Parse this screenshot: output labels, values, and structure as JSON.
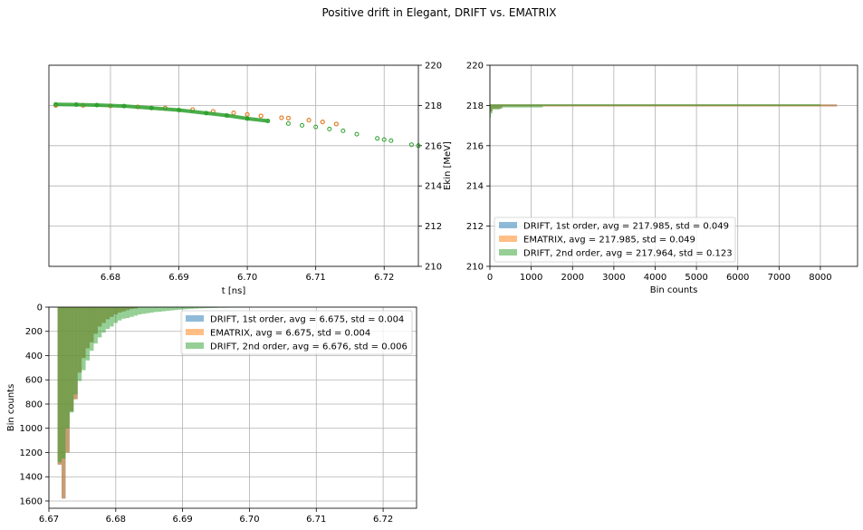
{
  "figure_title": "Positive drift in Elegant, DRIFT vs. EMATRIX",
  "colors": {
    "drift1": "#1f77b4",
    "ematrix": "#ff7f0e",
    "drift2": "#2ca02c"
  },
  "chart_data": [
    {
      "type": "scatter",
      "title": "",
      "xlabel": "t [ns]",
      "ylabel": "Ekin [MeV]",
      "ylabel_side": "right",
      "xlim": [
        6.671,
        6.725
      ],
      "ylim": [
        210,
        220
      ],
      "xticks": [
        "6.67",
        "6.68",
        "6.69",
        "6.70",
        "6.71",
        "6.72"
      ],
      "xtick_values": [
        6.67,
        6.68,
        6.69,
        6.7,
        6.71,
        6.72
      ],
      "yticks": [
        "210",
        "212",
        "214",
        "216",
        "218",
        "220"
      ],
      "ytick_values": [
        210,
        212,
        214,
        216,
        218,
        220
      ],
      "grid": true,
      "series": [
        {
          "name": "DRIFT, 1st order",
          "marker": "open-circle",
          "x": [
            6.672,
            6.676,
            6.68,
            6.684,
            6.688,
            6.692,
            6.695,
            6.698,
            6.7,
            6.702,
            6.705,
            6.706,
            6.709,
            6.711,
            6.713
          ],
          "y": [
            218.0,
            218.0,
            217.98,
            217.93,
            217.87,
            217.79,
            217.7,
            217.63,
            217.55,
            217.48,
            217.39,
            217.37,
            217.27,
            217.18,
            217.08
          ]
        },
        {
          "name": "EMATRIX",
          "marker": "open-circle",
          "x": [
            6.672,
            6.676,
            6.68,
            6.684,
            6.688,
            6.692,
            6.695,
            6.698,
            6.7,
            6.702,
            6.705,
            6.706,
            6.709,
            6.711,
            6.713
          ],
          "y": [
            218.0,
            218.0,
            217.98,
            217.93,
            217.87,
            217.79,
            217.7,
            217.63,
            217.55,
            217.48,
            217.39,
            217.37,
            217.27,
            217.18,
            217.08
          ]
        },
        {
          "name": "DRIFT, 2nd order",
          "marker": "open-circle",
          "x": [
            6.672,
            6.675,
            6.678,
            6.682,
            6.686,
            6.69,
            6.694,
            6.697,
            6.7,
            6.703,
            6.706,
            6.708,
            6.71,
            6.712,
            6.714,
            6.716,
            6.719,
            6.72,
            6.721,
            6.724,
            6.725
          ],
          "y": [
            218.05,
            218.04,
            218.02,
            217.97,
            217.87,
            217.77,
            217.62,
            217.5,
            217.35,
            217.23,
            217.1,
            217.01,
            216.93,
            216.83,
            216.74,
            216.57,
            216.36,
            216.3,
            216.25,
            216.05,
            216.0
          ]
        }
      ]
    },
    {
      "type": "bar",
      "orientation": "horizontal",
      "title": "",
      "xlabel": "Bin counts",
      "ylabel": "",
      "xlim": [
        0,
        8900
      ],
      "ylim": [
        210,
        220
      ],
      "xticks": [
        "0",
        "1000",
        "2000",
        "3000",
        "4000",
        "5000",
        "6000",
        "7000",
        "8000"
      ],
      "xtick_values": [
        0,
        1000,
        2000,
        3000,
        4000,
        5000,
        6000,
        7000,
        8000
      ],
      "yticks": [
        "210",
        "212",
        "214",
        "216",
        "218",
        "220"
      ],
      "ytick_values": [
        210,
        212,
        214,
        216,
        218,
        220
      ],
      "grid": true,
      "legend_position": "lower-left",
      "legend": [
        "DRIFT, 1st order, avg = 217.985, std = 0.049",
        "EMATRIX, avg = 217.985, std = 0.049",
        "DRIFT, 2nd order, avg = 217.964, std = 0.123"
      ],
      "series": [
        {
          "name": "DRIFT, 1st order",
          "bins": [
            [
              217.95,
              218.05,
              8400
            ],
            [
              217.85,
              217.95,
              300
            ],
            [
              217.7,
              217.85,
              60
            ]
          ]
        },
        {
          "name": "EMATRIX",
          "bins": [
            [
              217.95,
              218.05,
              8400
            ],
            [
              217.85,
              217.95,
              300
            ],
            [
              217.7,
              217.85,
              60
            ]
          ]
        },
        {
          "name": "DRIFT, 2nd order",
          "bins": [
            [
              217.98,
              218.06,
              8000
            ],
            [
              217.9,
              217.98,
              1280
            ],
            [
              217.8,
              217.9,
              250
            ],
            [
              217.6,
              217.8,
              60
            ],
            [
              217.4,
              217.6,
              25
            ]
          ]
        }
      ]
    },
    {
      "type": "bar",
      "orientation": "vertical-inverted",
      "title": "",
      "xlabel": "",
      "ylabel": "Bin counts",
      "xlim": [
        6.67,
        6.725
      ],
      "ylim": [
        1660,
        0
      ],
      "xticks": [
        "6.67",
        "6.68",
        "6.69",
        "6.70",
        "6.71",
        "6.72"
      ],
      "xtick_values": [
        6.67,
        6.68,
        6.69,
        6.7,
        6.71,
        6.72
      ],
      "yticks": [
        "0",
        "200",
        "400",
        "600",
        "800",
        "1000",
        "1200",
        "1400",
        "1600"
      ],
      "ytick_values": [
        0,
        200,
        400,
        600,
        800,
        1000,
        1200,
        1400,
        1600
      ],
      "grid": true,
      "legend_position": "upper-right",
      "legend": [
        "DRIFT, 1st order, avg = 6.675, std = 0.004",
        "EMATRIX, avg = 6.675, std = 0.004",
        "DRIFT, 2nd order, avg = 6.676, std = 0.006"
      ],
      "series": [
        {
          "name": "DRIFT, 1st order",
          "bin_start": 6.6713,
          "bin_width": 0.0006,
          "counts": [
            1300,
            1580,
            1200,
            860,
            760,
            540,
            420,
            340,
            290,
            220,
            160,
            130,
            100,
            80,
            60,
            45,
            35,
            25,
            15,
            10
          ]
        },
        {
          "name": "EMATRIX",
          "bin_start": 6.6713,
          "bin_width": 0.0006,
          "counts": [
            1300,
            1580,
            1200,
            860,
            760,
            540,
            420,
            340,
            290,
            220,
            160,
            130,
            100,
            80,
            60,
            45,
            35,
            25,
            15,
            10
          ]
        },
        {
          "name": "DRIFT, 2nd order",
          "bin_start": 6.6713,
          "bin_width": 0.0006,
          "counts": [
            1280,
            1250,
            1000,
            870,
            720,
            610,
            520,
            440,
            360,
            300,
            250,
            210,
            180,
            160,
            130,
            110,
            95,
            90,
            80,
            70,
            60,
            55,
            50,
            45,
            40,
            38,
            34,
            30,
            27,
            24,
            21,
            18,
            16,
            14,
            12,
            10,
            9,
            8,
            7,
            6,
            5,
            5,
            4,
            4,
            3,
            3,
            2,
            2
          ]
        }
      ]
    }
  ]
}
